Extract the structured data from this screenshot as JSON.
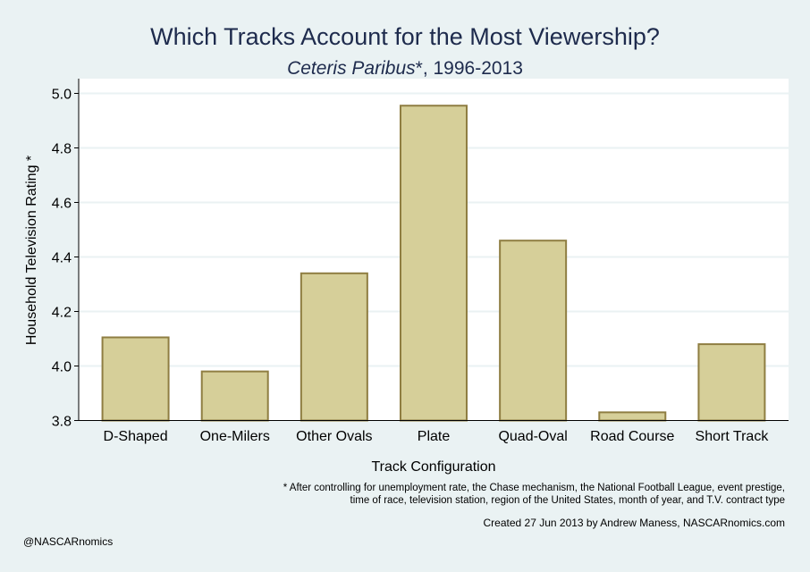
{
  "chart_data": {
    "type": "bar",
    "title": "Which Tracks Account for the Most Viewership?",
    "subtitle_italic": "Ceteris Paribus",
    "subtitle_rest": "*, 1996-2013",
    "xlabel": "Track Configuration",
    "ylabel": "Household Television Rating *",
    "categories": [
      "D-Shaped",
      "One-Milers",
      "Other Ovals",
      "Plate",
      "Quad-Oval",
      "Road Course",
      "Short Track"
    ],
    "values": [
      4.105,
      3.98,
      4.34,
      4.955,
      4.46,
      3.83,
      4.08
    ],
    "ylim": [
      3.8,
      5.0
    ],
    "yticks": [
      "3.8",
      "4.0",
      "4.2",
      "4.4",
      "4.6",
      "4.8",
      "5.0"
    ],
    "grid": true,
    "colors": {
      "bar_fill": "#d6cf99",
      "bar_stroke": "#8f7e42",
      "plot_bg": "#ffffff",
      "page_bg": "#eaf2f3",
      "title": "#1e2b4d"
    }
  },
  "notes": {
    "footnote_line1": "* After controlling for unemployment rate, the Chase mechanism, the National Football League, event prestige,",
    "footnote_line2": "time of race, television station, region of the United States, month of year, and T.V. contract type",
    "created": "Created 27 Jun 2013 by Andrew Maness, NASCARnomics.com",
    "handle": "@NASCARnomics"
  }
}
